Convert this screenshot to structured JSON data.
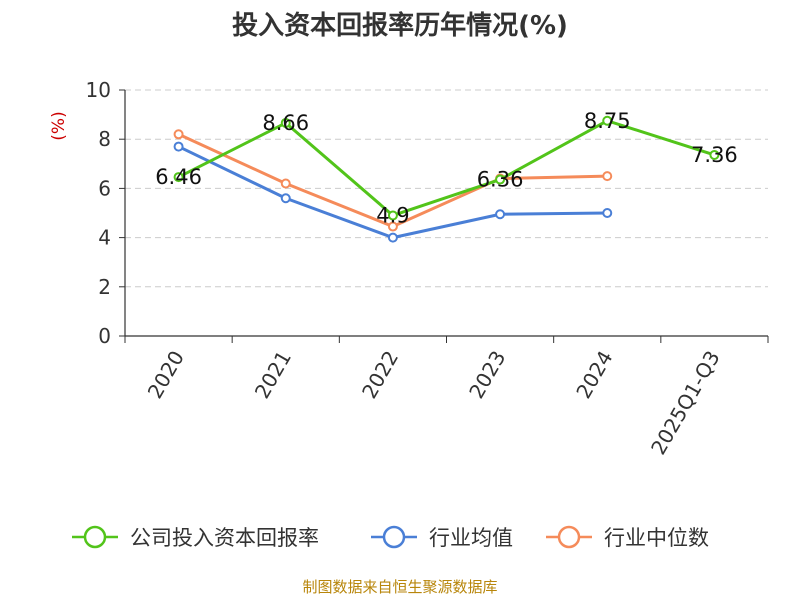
{
  "chart_data": {
    "type": "line",
    "title": "投入资本回报率历年情况(%)",
    "ylabel": "(%)",
    "ylim": [
      0,
      10
    ],
    "yticks": [
      0,
      2,
      4,
      6,
      8,
      10
    ],
    "grid": true,
    "legend_position": "bottom",
    "categories": [
      "2020",
      "2021",
      "2022",
      "2023",
      "2024",
      "2025Q1-Q3"
    ],
    "series": [
      {
        "name": "公司投入资本回报率",
        "color": "#52c41a",
        "values": [
          6.46,
          8.66,
          4.9,
          6.36,
          8.75,
          7.36
        ],
        "labels": [
          "6.46",
          "8.66",
          "4.9",
          "6.36",
          "8.75",
          "7.36"
        ]
      },
      {
        "name": "行业均值",
        "color": "#4a7fd6",
        "values": [
          7.7,
          5.6,
          4.0,
          4.95,
          5.0,
          null
        ]
      },
      {
        "name": "行业中位数",
        "color": "#f58b5a",
        "values": [
          8.2,
          6.2,
          4.45,
          6.4,
          6.5,
          null
        ]
      }
    ]
  },
  "source": "制图数据来自恒生聚源数据库"
}
